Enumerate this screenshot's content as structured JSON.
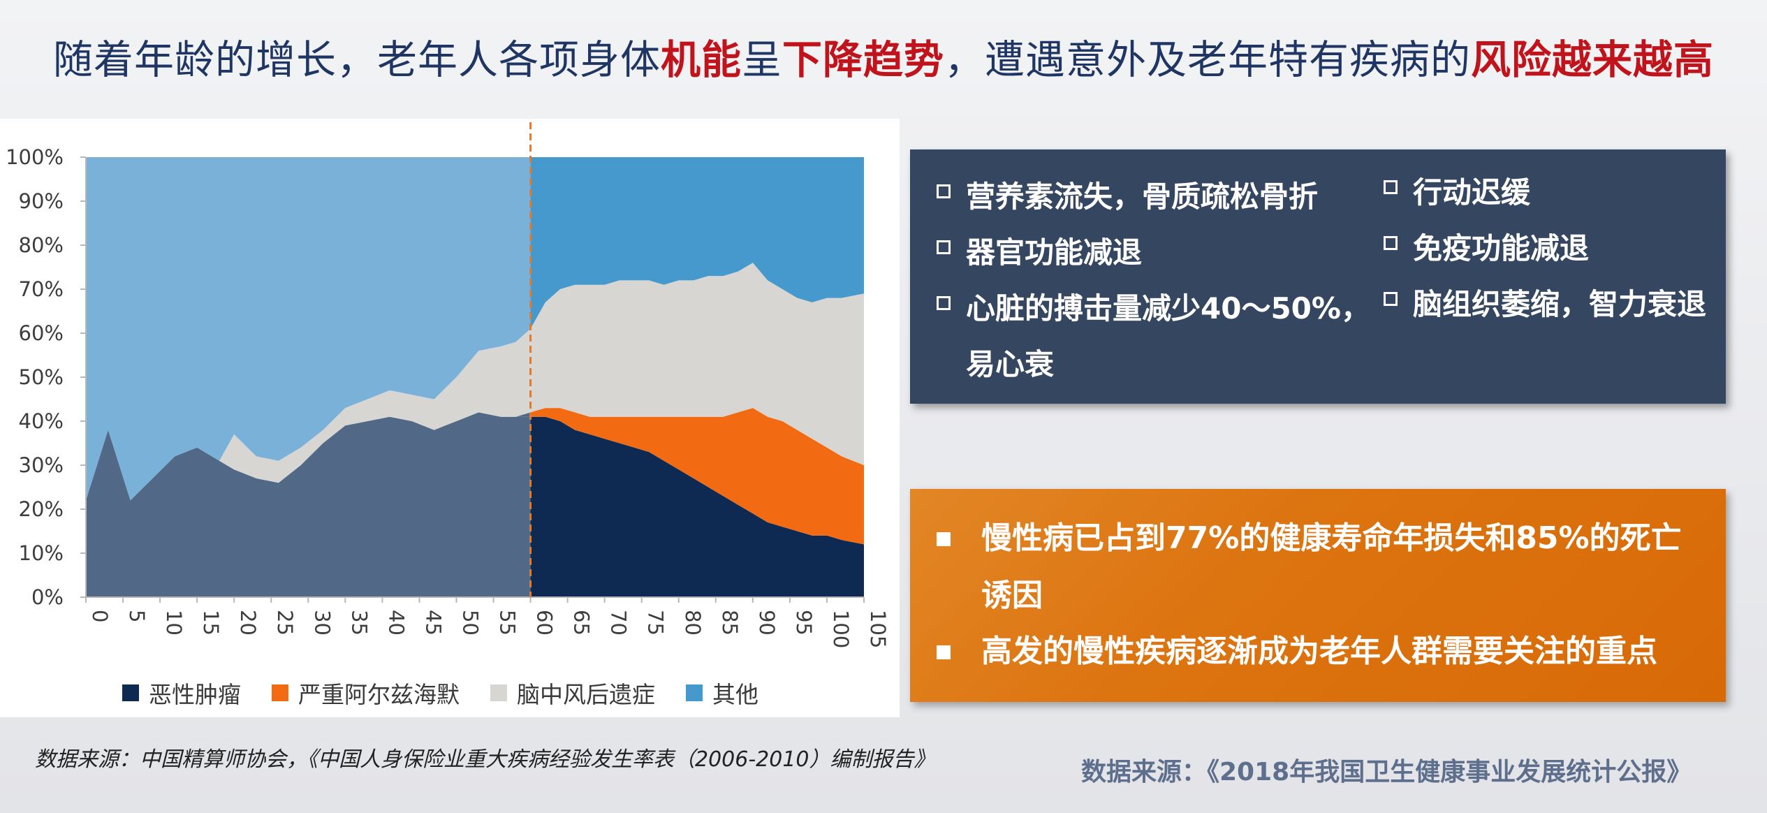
{
  "title": {
    "parts": [
      "随着年龄的增长，老年人各项身体",
      "机能",
      "呈",
      "下降趋势",
      "，遭遇意外及老年特有疾病的",
      "风险越来越高"
    ]
  },
  "colors": {
    "title": "#1f3564",
    "highlight": "#c0131b",
    "series_pre60": "#516987",
    "series_pre60_stroke": "#d8d6d3",
    "series_pre60_top": "#79b1d9",
    "malignant": "#0f2a52",
    "alzheimer": "#f26b12",
    "stroke_sequelae": "#d8d6d3",
    "other": "#4599cd",
    "divider": "#e57a26",
    "dark_box": "#344660",
    "orange_box": "#dc7410"
  },
  "chart_data": {
    "type": "area",
    "stacked": true,
    "x": [
      0,
      3,
      6,
      9,
      12,
      15,
      18,
      20,
      23,
      26,
      29,
      32,
      35,
      38,
      41,
      44,
      47,
      50,
      53,
      56,
      58,
      60,
      62,
      64,
      66,
      68,
      70,
      72,
      74,
      76,
      78,
      80,
      82,
      84,
      86,
      88,
      90,
      92,
      94,
      96,
      98,
      100,
      102,
      105
    ],
    "xticks": [
      "0",
      "5",
      "10",
      "15",
      "20",
      "25",
      "30",
      "35",
      "40",
      "45",
      "50",
      "55",
      "60",
      "65",
      "70",
      "75",
      "80",
      "85",
      "90",
      "95",
      "100",
      "105"
    ],
    "yticks": [
      "0%",
      "10%",
      "20%",
      "30%",
      "40%",
      "50%",
      "60%",
      "70%",
      "80%",
      "90%",
      "100%"
    ],
    "ylim": [
      0,
      100
    ],
    "xlim": [
      0,
      105
    ],
    "grid": false,
    "legend_position": "bottom",
    "divider_x": 60,
    "series": [
      {
        "name": "恶性肿瘤",
        "values": [
          22,
          38,
          22,
          27,
          32,
          34,
          31,
          29,
          27,
          26,
          30,
          35,
          39,
          40,
          41,
          40,
          38,
          40,
          42,
          41,
          41,
          41,
          41,
          40,
          38,
          37,
          36,
          35,
          34,
          33,
          31,
          29,
          27,
          25,
          23,
          21,
          19,
          17,
          16,
          15,
          14,
          14,
          13,
          12
        ]
      },
      {
        "name": "严重阿尔兹海默",
        "values": [
          0,
          0,
          0,
          0,
          0,
          0,
          0,
          0,
          0,
          0,
          0,
          0,
          0,
          0,
          0,
          0,
          0,
          0,
          0,
          0,
          0,
          1,
          2,
          3,
          4,
          4,
          5,
          6,
          7,
          8,
          10,
          12,
          14,
          16,
          18,
          21,
          24,
          24,
          24,
          23,
          22,
          20,
          19,
          18
        ]
      },
      {
        "name": "脑中风后遗症",
        "values": [
          0,
          0,
          0,
          0,
          0,
          0,
          0,
          8,
          5,
          5,
          4,
          3,
          4,
          5,
          6,
          6,
          7,
          10,
          14,
          16,
          17,
          19,
          24,
          27,
          29,
          30,
          30,
          31,
          31,
          31,
          30,
          31,
          31,
          32,
          32,
          32,
          33,
          31,
          30,
          30,
          31,
          34,
          36,
          39
        ]
      },
      {
        "name": "其他",
        "values": [
          78,
          62,
          78,
          73,
          68,
          66,
          69,
          63,
          68,
          69,
          66,
          62,
          57,
          55,
          53,
          54,
          55,
          50,
          44,
          43,
          42,
          39,
          33,
          30,
          29,
          29,
          29,
          28,
          28,
          28,
          29,
          28,
          28,
          27,
          27,
          26,
          24,
          28,
          30,
          32,
          33,
          32,
          32,
          31
        ]
      }
    ],
    "pre60_display": "恶性肿瘤 dark slate, 脑中风后遗症 light grey, remainder light blue (lighter tint) to the left of the dashed line at 60"
  },
  "legend": {
    "items": [
      {
        "label": "恶性肿瘤",
        "color": "#0f2a52"
      },
      {
        "label": "严重阿尔兹海默",
        "color": "#f26b12"
      },
      {
        "label": "脑中风后遗症",
        "color": "#d8d6d3"
      },
      {
        "label": "其他",
        "color": "#4599cd"
      }
    ]
  },
  "symptoms": {
    "col1": [
      "营养素流失，骨质疏松骨折",
      "器官功能减退",
      "心脏的搏击量减少40～50%，\n易心衰"
    ],
    "col2": [
      "行动迟缓",
      "免疫功能减退",
      "脑组织萎缩，智力衰退"
    ]
  },
  "chronic": {
    "items": [
      "慢性病已占到77%的健康寿命年损失和85%的死亡诱因",
      "高发的慢性疾病逐渐成为老年人群需要关注的重点"
    ]
  },
  "sources": {
    "left": "数据来源：中国精算师协会，《中国人身保险业重大疾病经验发生率表（2006-2010）编制报告》",
    "right": "数据来源：《2018年我国卫生健康事业发展统计公报》"
  }
}
